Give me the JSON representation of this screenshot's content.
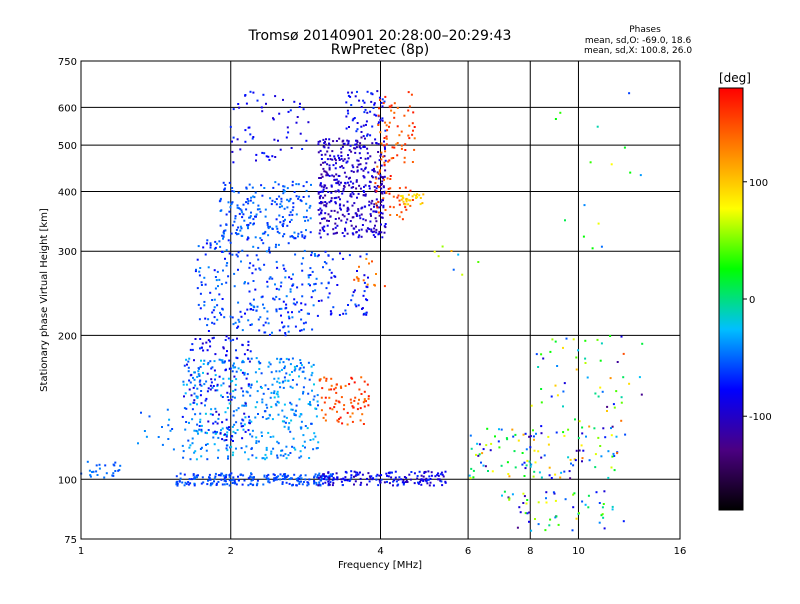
{
  "chart_data": {
    "type": "scatter",
    "title": "Tromsø 20140901 20:28:00–20:29:43",
    "subtitle": "RwPretec (8p)",
    "info": {
      "heading": "Phases",
      "line1": "mean, sd,O: -69.0, 18.6",
      "line2": "mean, sd,X: 100.8, 26.0"
    },
    "xlabel": "Frequency [MHz]",
    "ylabel": "Stationary phase Virtual Height [km]",
    "x_scale": "log",
    "y_scale": "log",
    "xlim": [
      1,
      16
    ],
    "ylim": [
      75,
      750
    ],
    "x_ticks": [
      1,
      2,
      4,
      6,
      8,
      10,
      16
    ],
    "y_ticks": [
      75,
      100,
      200,
      300,
      400,
      500,
      600,
      750
    ],
    "x_grid": [
      2,
      4,
      6,
      8,
      10
    ],
    "y_grid": [
      100,
      200,
      300,
      400,
      500,
      600
    ],
    "colorbar": {
      "label": "[deg]",
      "range": [
        -180,
        180
      ],
      "ticks": [
        100,
        0,
        -100
      ],
      "colormap": [
        "#000000",
        "#4b0082",
        "#0000ff",
        "#00bfff",
        "#00ff00",
        "#ffff00",
        "#ff8000",
        "#ff0000"
      ]
    },
    "clusters": [
      {
        "f": [
          1.0,
          1.2
        ],
        "h": [
          100,
          110
        ],
        "phase": [
          -60,
          -40
        ],
        "n": 25
      },
      {
        "f": [
          1.3,
          1.55
        ],
        "h": [
          110,
          140
        ],
        "phase": [
          -60,
          -30
        ],
        "n": 15
      },
      {
        "f": [
          1.55,
          3.2
        ],
        "h": [
          97,
          103
        ],
        "phase": [
          -70,
          -45
        ],
        "n": 220
      },
      {
        "f": [
          3.0,
          5.5
        ],
        "h": [
          97,
          104
        ],
        "phase": [
          -110,
          -60
        ],
        "n": 170
      },
      {
        "f": [
          1.6,
          3.0
        ],
        "h": [
          110,
          180
        ],
        "phase": [
          -60,
          -20
        ],
        "n": 420
      },
      {
        "f": [
          1.6,
          2.2
        ],
        "h": [
          120,
          200
        ],
        "phase": [
          -100,
          -60
        ],
        "n": 120
      },
      {
        "f": [
          1.7,
          3.0
        ],
        "h": [
          200,
          320
        ],
        "phase": [
          -80,
          -40
        ],
        "n": 260
      },
      {
        "f": [
          1.9,
          2.9
        ],
        "h": [
          320,
          420
        ],
        "phase": [
          -70,
          -40
        ],
        "n": 200
      },
      {
        "f": [
          2.0,
          2.9
        ],
        "h": [
          460,
          650
        ],
        "phase": [
          -100,
          -60
        ],
        "n": 60
      },
      {
        "f": [
          3.0,
          4.1
        ],
        "h": [
          320,
          520
        ],
        "phase": [
          -120,
          -80
        ],
        "n": 430
      },
      {
        "f": [
          3.4,
          4.1
        ],
        "h": [
          520,
          650
        ],
        "phase": [
          -100,
          -60
        ],
        "n": 60
      },
      {
        "f": [
          3.0,
          3.8
        ],
        "h": [
          220,
          300
        ],
        "phase": [
          -90,
          -50
        ],
        "n": 60
      },
      {
        "f": [
          3.0,
          3.8
        ],
        "h": [
          130,
          165
        ],
        "phase": [
          130,
          175
        ],
        "n": 80
      },
      {
        "f": [
          3.9,
          4.7
        ],
        "h": [
          350,
          650
        ],
        "phase": [
          130,
          175
        ],
        "n": 110
      },
      {
        "f": [
          4.4,
          4.9
        ],
        "h": [
          375,
          395
        ],
        "phase": [
          80,
          110
        ],
        "n": 30
      },
      {
        "f": [
          3.5,
          4.1
        ],
        "h": [
          250,
          290
        ],
        "phase": [
          120,
          160
        ],
        "n": 15
      },
      {
        "f": [
          6.0,
          12.0
        ],
        "h": [
          100,
          130
        ],
        "phase": [
          -130,
          120
        ],
        "n": 120
      },
      {
        "f": [
          7.0,
          12.5
        ],
        "h": [
          78,
          95
        ],
        "phase": [
          -140,
          90
        ],
        "n": 60
      },
      {
        "f": [
          9.5,
          13.5
        ],
        "h": [
          110,
          200
        ],
        "phase": [
          -130,
          150
        ],
        "n": 40
      },
      {
        "f": [
          8.0,
          10.0
        ],
        "h": [
          140,
          200
        ],
        "phase": [
          -100,
          100
        ],
        "n": 20
      },
      {
        "f": [
          9.0,
          13.5
        ],
        "h": [
          300,
          650
        ],
        "phase": [
          -130,
          80
        ],
        "n": 15
      },
      {
        "f": [
          5.0,
          6.5
        ],
        "h": [
          260,
          310
        ],
        "phase": [
          -100,
          120
        ],
        "n": 8
      }
    ]
  }
}
